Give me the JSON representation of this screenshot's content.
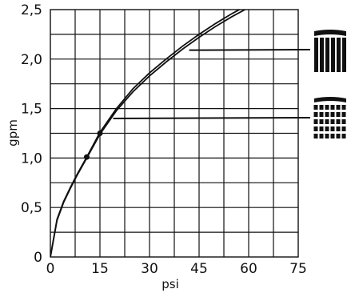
{
  "chart_data": {
    "type": "line",
    "title": "",
    "xlabel": "psi",
    "ylabel": "gpm",
    "xlim": [
      0,
      75
    ],
    "ylim": [
      0,
      2.5
    ],
    "grid": true,
    "x_ticks": [
      "0",
      "15",
      "30",
      "45",
      "60",
      "75"
    ],
    "y_ticks": [
      "0",
      "0,5",
      "1,0",
      "1,5",
      "2,0",
      "2,5"
    ],
    "series": [
      {
        "spray": "full-jet-spray-icon",
        "x": [
          0,
          2,
          4,
          6,
          8,
          11,
          15,
          20,
          25,
          30,
          35,
          40,
          45,
          50,
          55,
          60,
          63
        ],
        "y": [
          0,
          0.37,
          0.55,
          0.69,
          0.82,
          1.0,
          1.24,
          1.48,
          1.67,
          1.83,
          1.97,
          2.1,
          2.22,
          2.33,
          2.43,
          2.52,
          2.58
        ]
      },
      {
        "spray": "aerated-spray-icon",
        "x": [
          0,
          2,
          4,
          6,
          8,
          11,
          15,
          20,
          25,
          30,
          35,
          40,
          45,
          50,
          55,
          60,
          62
        ],
        "y": [
          0,
          0.38,
          0.56,
          0.7,
          0.83,
          1.01,
          1.26,
          1.5,
          1.7,
          1.86,
          2.0,
          2.13,
          2.25,
          2.36,
          2.46,
          2.55,
          2.58
        ]
      }
    ],
    "points": [
      {
        "x": 11,
        "y": 1.01
      },
      {
        "x": 15,
        "y": 1.25
      }
    ],
    "leaders": [
      {
        "from": {
          "x": 42,
          "y": 2.09
        },
        "to_icon": "full-jet-spray-icon"
      },
      {
        "from": {
          "x": 19,
          "y": 1.4
        },
        "to_icon": "aerated-spray-icon"
      }
    ]
  }
}
